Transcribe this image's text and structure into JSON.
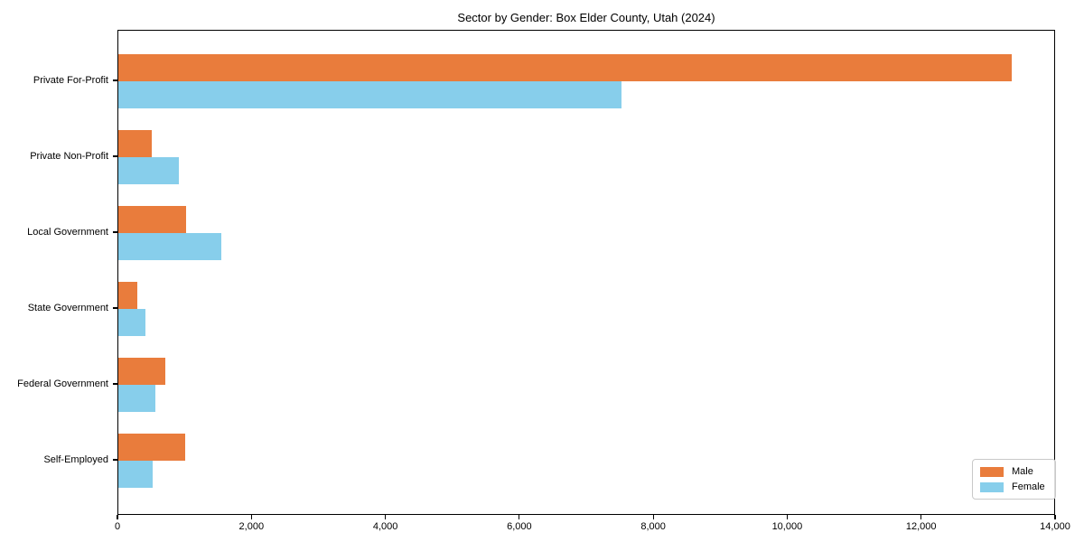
{
  "chart_data": {
    "type": "bar",
    "orientation": "horizontal",
    "title": "Sector by Gender: Box Elder County, Utah (2024)",
    "categories": [
      "Private For-Profit",
      "Private Non-Profit",
      "Local Government",
      "State Government",
      "Federal Government",
      "Self-Employed"
    ],
    "series": [
      {
        "name": "Male",
        "color": "#E97C3C",
        "values": [
          13340,
          500,
          1010,
          280,
          700,
          1000
        ]
      },
      {
        "name": "Female",
        "color": "#87CEEB",
        "values": [
          7510,
          900,
          1540,
          400,
          550,
          510
        ]
      }
    ],
    "xlim": [
      0,
      14000
    ],
    "x_ticks": [
      0,
      2000,
      4000,
      6000,
      8000,
      10000,
      12000,
      14000
    ],
    "x_tick_labels": [
      "0",
      "2,000",
      "4,000",
      "6,000",
      "8,000",
      "10,000",
      "12,000",
      "14,000"
    ],
    "xlabel": "",
    "ylabel": "",
    "grid": false,
    "legend": {
      "position": "lower-right",
      "entries": [
        "Male",
        "Female"
      ]
    }
  }
}
